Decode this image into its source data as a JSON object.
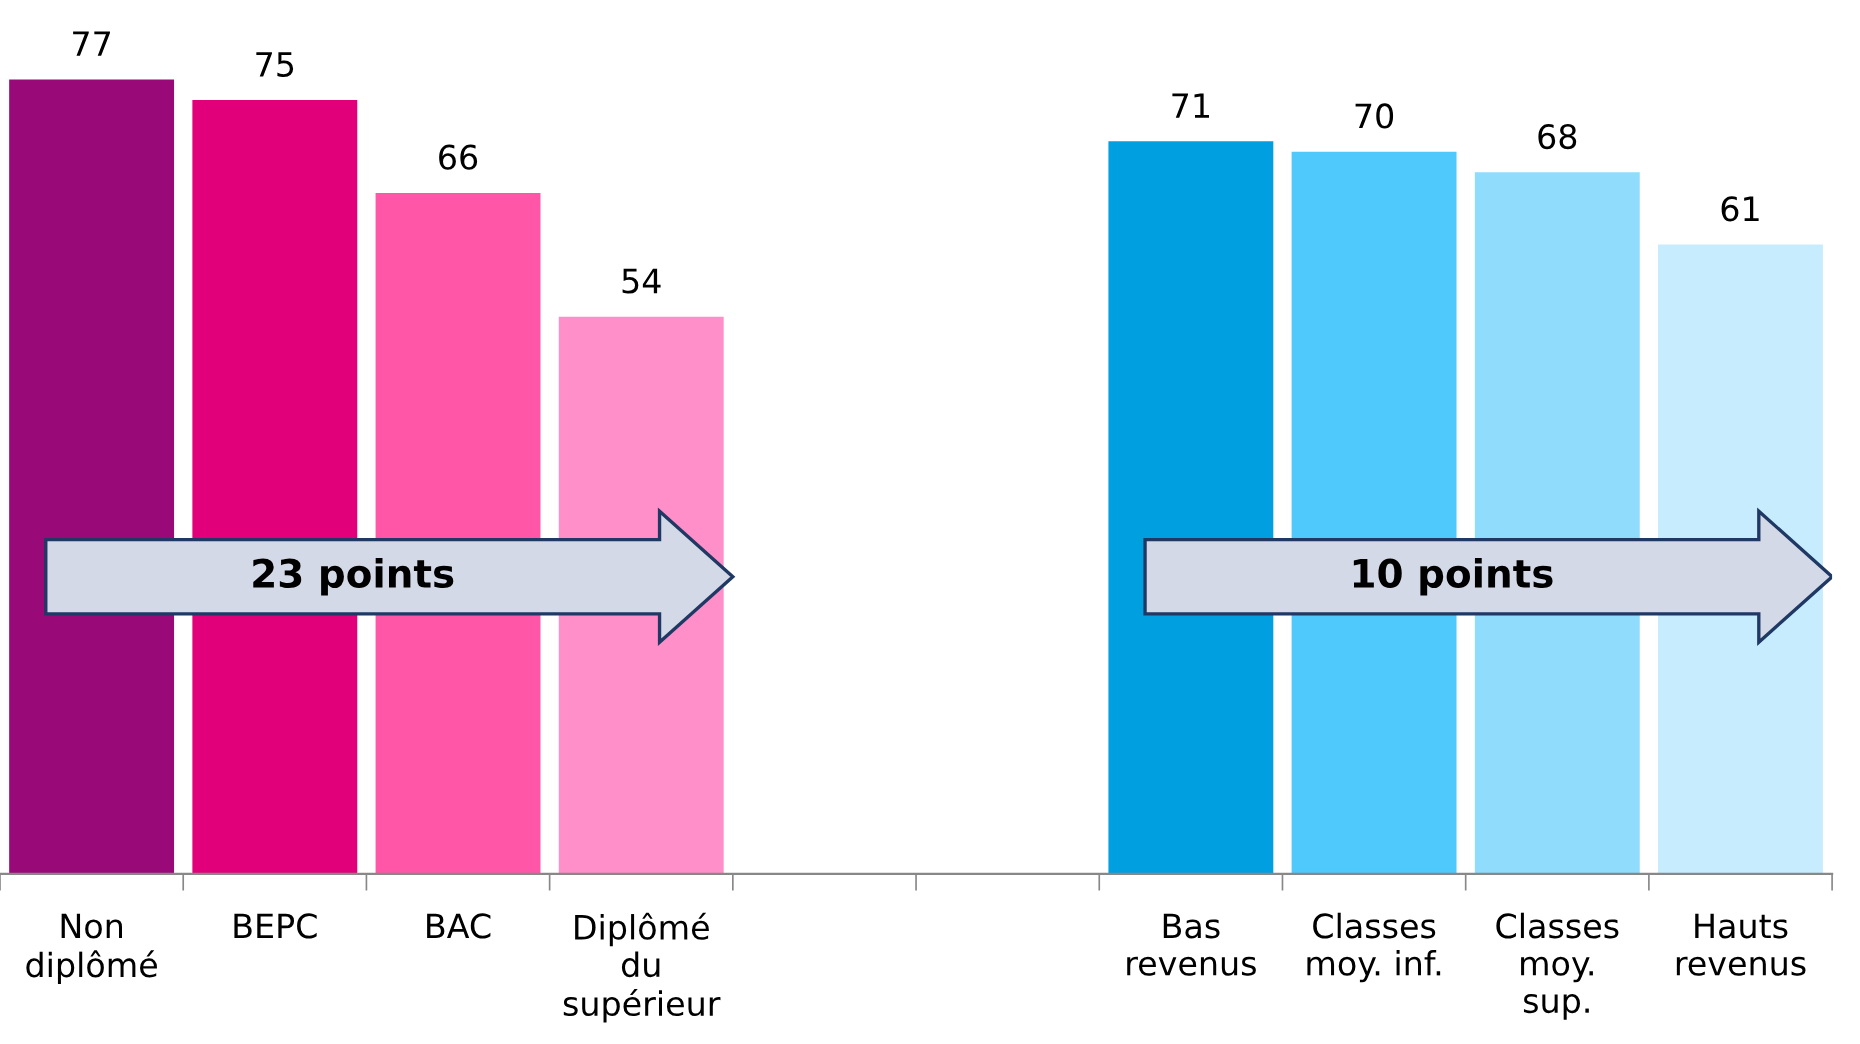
{
  "chart_data": {
    "type": "bar",
    "categories": [
      "Non\ndiplômé",
      "BEPC",
      "BAC",
      "Diplômé\ndu\nsupérieur",
      null,
      null,
      "Bas\nrevenus",
      "Classes\nmoy. inf.",
      "Classes\nmoy.\nsup.",
      "Hauts\nrevenus"
    ],
    "values": [
      77,
      75,
      66,
      54,
      null,
      null,
      71,
      70,
      68,
      61
    ],
    "colors": [
      "#990a78",
      "#e2007a",
      "#ff56a8",
      "#ff8fc8",
      "#ffffff",
      "#ffffff",
      "#009fe0",
      "#4fc8fb",
      "#8fdcfc",
      "#c6ecfd"
    ],
    "data_labels": true,
    "tick_labels": "x",
    "annotations": [
      "23 points",
      "10 points"
    ]
  }
}
